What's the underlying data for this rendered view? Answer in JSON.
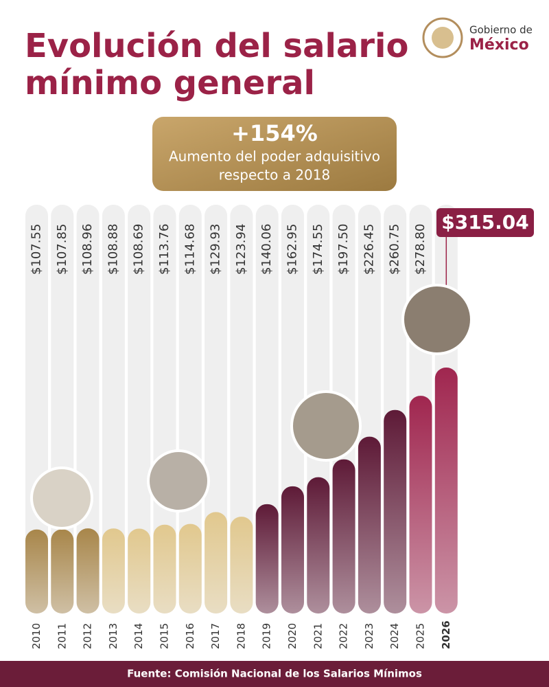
{
  "brand": {
    "line1": "Gobierno de",
    "line2": "México"
  },
  "chart_data": {
    "type": "bar",
    "title": [
      "Evolución del salario",
      "mínimo general"
    ],
    "highlight": {
      "value": "+154%",
      "text": [
        "Aumento del poder adquisitivo",
        "respecto a 2018"
      ]
    },
    "categories": [
      "2010",
      "2011",
      "2012",
      "2013",
      "2014",
      "2015",
      "2016",
      "2017",
      "2018",
      "2019",
      "2020",
      "2021",
      "2022",
      "2023",
      "2024",
      "2025",
      "2026"
    ],
    "values": [
      107.55,
      107.85,
      108.96,
      108.88,
      108.69,
      113.76,
      114.68,
      129.93,
      123.94,
      140.06,
      162.95,
      174.55,
      197.5,
      226.45,
      260.75,
      278.8,
      315.04
    ],
    "value_labels": [
      "$107.55",
      "$107.85",
      "$108.96",
      "$108.88",
      "$108.69",
      "$113.76",
      "$114.68",
      "$129.93",
      "$123.94",
      "$140.06",
      "$162.95",
      "$174.55",
      "$197.50",
      "$226.45",
      "$260.75",
      "$278.80",
      "$315.04"
    ],
    "colors": [
      "#a8864a",
      "#a8864a",
      "#a8864a",
      "#e1c88e",
      "#e1c88e",
      "#e1c88e",
      "#e1c88e",
      "#e1c88e",
      "#e1c88e",
      "#5e1a37",
      "#5e1a37",
      "#5e1a37",
      "#5e1a37",
      "#5e1a37",
      "#5e1a37",
      "#a0264f",
      "#a0264f"
    ],
    "source": "Fuente: Comisión Nacional de los Salarios Mínimos"
  }
}
